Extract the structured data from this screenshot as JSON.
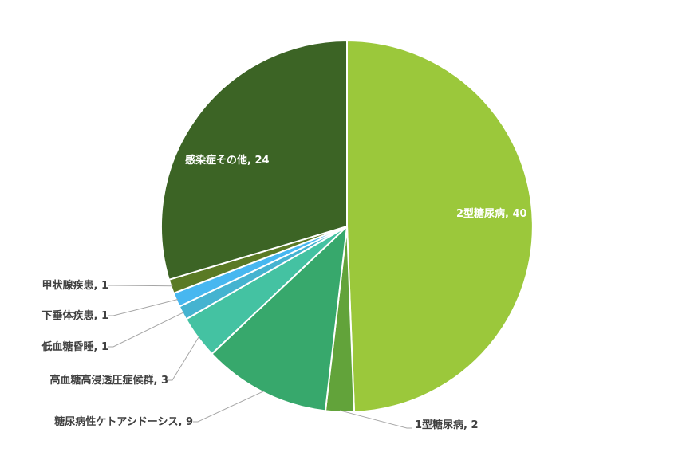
{
  "chart_data": {
    "type": "pie",
    "title": "",
    "start_angle_deg": 0,
    "direction": "clockwise",
    "legend": "none",
    "slices": [
      {
        "name": "2型糖尿病",
        "value": 40,
        "color": "#9BC83B",
        "label_text": "2型糖尿病, 40",
        "label_position": "inside"
      },
      {
        "name": "1型糖尿病",
        "value": 2,
        "color": "#62A33A",
        "label_text": "1型糖尿病, 2",
        "label_position": "outside"
      },
      {
        "name": "糖尿病性ケトアシドーシス",
        "value": 9,
        "color": "#37A86C",
        "label_text": "糖尿病性ケトアシドーシス, 9",
        "label_position": "outside"
      },
      {
        "name": "高血糖高浸透圧症候群",
        "value": 3,
        "color": "#44C2A2",
        "label_text": "高血糖高浸透圧症候群, 3",
        "label_position": "outside"
      },
      {
        "name": "低血糖昏睡",
        "value": 1,
        "color": "#45B3D0",
        "label_text": "低血糖昏睡, 1",
        "label_position": "outside"
      },
      {
        "name": "下垂体疾患",
        "value": 1,
        "color": "#47B7F0",
        "label_text": "下垂体疾患, 1",
        "label_position": "outside"
      },
      {
        "name": "甲状腺疾患",
        "value": 1,
        "color": "#5A7A25",
        "label_text": "甲状腺疾患, 1",
        "label_position": "outside"
      },
      {
        "name": "感染症その他",
        "value": 24,
        "color": "#3C6425",
        "label_text": "感染症その他, 24",
        "label_position": "inside"
      }
    ]
  }
}
